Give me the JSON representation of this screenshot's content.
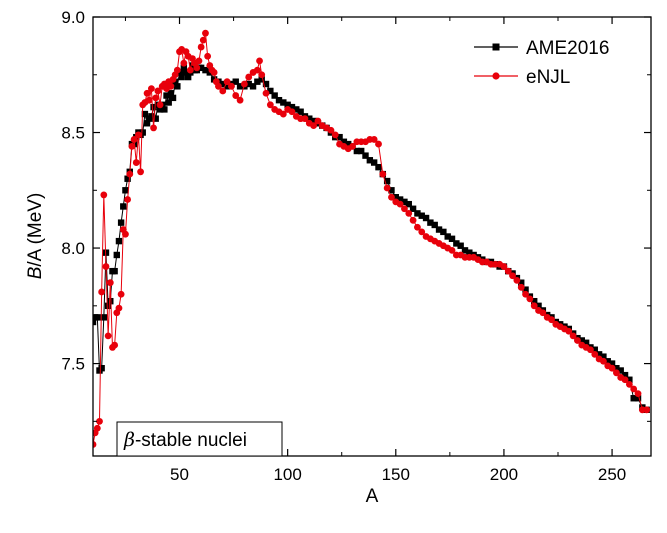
{
  "chart_data": {
    "type": "line",
    "xlabel": "A",
    "ylabel_italic": "B",
    "ylabel_rest": "/A (MeV)",
    "xlim": [
      10,
      268
    ],
    "ylim": [
      7.1,
      9.0
    ],
    "xticks": [
      50,
      100,
      150,
      200,
      250
    ],
    "yticks": [
      7.5,
      8.0,
      8.5,
      9.0
    ],
    "xtick_labels": [
      "50",
      "100",
      "150",
      "200",
      "250"
    ],
    "ytick_labels": [
      "7.5",
      "8.0",
      "8.5",
      "9.0"
    ],
    "legend_position": "top-right",
    "annotation_symbol": "β",
    "annotation_text": "-stable nuclei",
    "series": [
      {
        "name": "AME2016",
        "color": "#000000",
        "marker": "square",
        "points": [
          [
            10,
            7.68
          ],
          [
            11,
            7.7
          ],
          [
            12,
            7.7
          ],
          [
            13,
            7.47
          ],
          [
            14,
            7.48
          ],
          [
            15,
            7.7
          ],
          [
            16,
            7.98
          ],
          [
            17,
            7.75
          ],
          [
            18,
            7.77
          ],
          [
            19,
            7.9
          ],
          [
            20,
            7.9
          ],
          [
            21,
            7.97
          ],
          [
            22,
            8.03
          ],
          [
            23,
            8.11
          ],
          [
            24,
            8.18
          ],
          [
            25,
            8.25
          ],
          [
            26,
            8.3
          ],
          [
            27,
            8.33
          ],
          [
            28,
            8.45
          ],
          [
            29,
            8.45
          ],
          [
            30,
            8.48
          ],
          [
            31,
            8.5
          ],
          [
            32,
            8.49
          ],
          [
            33,
            8.5
          ],
          [
            34,
            8.58
          ],
          [
            35,
            8.54
          ],
          [
            36,
            8.56
          ],
          [
            37,
            8.57
          ],
          [
            38,
            8.61
          ],
          [
            39,
            8.56
          ],
          [
            40,
            8.62
          ],
          [
            41,
            8.6
          ],
          [
            42,
            8.62
          ],
          [
            43,
            8.6
          ],
          [
            44,
            8.66
          ],
          [
            45,
            8.63
          ],
          [
            46,
            8.67
          ],
          [
            47,
            8.65
          ],
          [
            48,
            8.72
          ],
          [
            49,
            8.7
          ],
          [
            50,
            8.76
          ],
          [
            51,
            8.74
          ],
          [
            52,
            8.78
          ],
          [
            53,
            8.76
          ],
          [
            54,
            8.74
          ],
          [
            55,
            8.76
          ],
          [
            56,
            8.79
          ],
          [
            57,
            8.77
          ],
          [
            58,
            8.77
          ],
          [
            59,
            8.78
          ],
          [
            60,
            8.78
          ],
          [
            62,
            8.77
          ],
          [
            64,
            8.76
          ],
          [
            66,
            8.73
          ],
          [
            68,
            8.72
          ],
          [
            70,
            8.71
          ],
          [
            72,
            8.7
          ],
          [
            74,
            8.71
          ],
          [
            76,
            8.72
          ],
          [
            78,
            8.7
          ],
          [
            80,
            8.7
          ],
          [
            82,
            8.71
          ],
          [
            84,
            8.7
          ],
          [
            86,
            8.72
          ],
          [
            88,
            8.73
          ],
          [
            90,
            8.71
          ],
          [
            92,
            8.68
          ],
          [
            94,
            8.66
          ],
          [
            96,
            8.64
          ],
          [
            98,
            8.63
          ],
          [
            100,
            8.62
          ],
          [
            102,
            8.61
          ],
          [
            104,
            8.6
          ],
          [
            106,
            8.59
          ],
          [
            108,
            8.57
          ],
          [
            110,
            8.56
          ],
          [
            112,
            8.55
          ],
          [
            114,
            8.54
          ],
          [
            116,
            8.53
          ],
          [
            118,
            8.52
          ],
          [
            120,
            8.5
          ],
          [
            122,
            8.48
          ],
          [
            124,
            8.48
          ],
          [
            126,
            8.46
          ],
          [
            128,
            8.45
          ],
          [
            130,
            8.44
          ],
          [
            132,
            8.42
          ],
          [
            134,
            8.42
          ],
          [
            136,
            8.4
          ],
          [
            138,
            8.38
          ],
          [
            140,
            8.37
          ],
          [
            142,
            8.35
          ],
          [
            144,
            8.32
          ],
          [
            146,
            8.29
          ],
          [
            148,
            8.25
          ],
          [
            150,
            8.22
          ],
          [
            152,
            8.21
          ],
          [
            154,
            8.2
          ],
          [
            156,
            8.19
          ],
          [
            158,
            8.17
          ],
          [
            160,
            8.15
          ],
          [
            162,
            8.14
          ],
          [
            164,
            8.13
          ],
          [
            166,
            8.11
          ],
          [
            168,
            8.1
          ],
          [
            170,
            8.08
          ],
          [
            172,
            8.07
          ],
          [
            174,
            8.05
          ],
          [
            176,
            8.04
          ],
          [
            178,
            8.02
          ],
          [
            180,
            8.01
          ],
          [
            182,
            7.99
          ],
          [
            184,
            7.98
          ],
          [
            186,
            7.97
          ],
          [
            188,
            7.96
          ],
          [
            190,
            7.95
          ],
          [
            192,
            7.94
          ],
          [
            194,
            7.94
          ],
          [
            196,
            7.93
          ],
          [
            198,
            7.92
          ],
          [
            200,
            7.92
          ],
          [
            202,
            7.9
          ],
          [
            204,
            7.89
          ],
          [
            206,
            7.87
          ],
          [
            208,
            7.85
          ],
          [
            210,
            7.82
          ],
          [
            212,
            7.79
          ],
          [
            214,
            7.77
          ],
          [
            216,
            7.75
          ],
          [
            218,
            7.73
          ],
          [
            220,
            7.71
          ],
          [
            222,
            7.7
          ],
          [
            224,
            7.68
          ],
          [
            226,
            7.67
          ],
          [
            228,
            7.66
          ],
          [
            230,
            7.65
          ],
          [
            232,
            7.63
          ],
          [
            234,
            7.61
          ],
          [
            236,
            7.6
          ],
          [
            238,
            7.59
          ],
          [
            240,
            7.57
          ],
          [
            242,
            7.56
          ],
          [
            244,
            7.54
          ],
          [
            246,
            7.53
          ],
          [
            248,
            7.51
          ],
          [
            250,
            7.5
          ],
          [
            252,
            7.48
          ],
          [
            254,
            7.47
          ],
          [
            256,
            7.45
          ],
          [
            258,
            7.43
          ],
          [
            260,
            7.35
          ],
          [
            262,
            7.35
          ],
          [
            264,
            7.31
          ],
          [
            266,
            7.3
          ]
        ]
      },
      {
        "name": "eNJL",
        "color": "#e8000b",
        "marker": "circle",
        "points": [
          [
            10,
            7.15
          ],
          [
            11,
            7.2
          ],
          [
            12,
            7.22
          ],
          [
            13,
            7.25
          ],
          [
            14,
            7.81
          ],
          [
            15,
            8.23
          ],
          [
            16,
            7.92
          ],
          [
            17,
            7.62
          ],
          [
            18,
            7.85
          ],
          [
            19,
            7.57
          ],
          [
            20,
            7.58
          ],
          [
            21,
            7.72
          ],
          [
            22,
            7.74
          ],
          [
            23,
            7.8
          ],
          [
            24,
            8.08
          ],
          [
            25,
            8.06
          ],
          [
            26,
            8.21
          ],
          [
            27,
            8.32
          ],
          [
            28,
            8.44
          ],
          [
            29,
            8.47
          ],
          [
            30,
            8.37
          ],
          [
            31,
            8.49
          ],
          [
            32,
            8.33
          ],
          [
            33,
            8.62
          ],
          [
            34,
            8.63
          ],
          [
            35,
            8.67
          ],
          [
            36,
            8.64
          ],
          [
            37,
            8.69
          ],
          [
            38,
            8.52
          ],
          [
            39,
            8.65
          ],
          [
            40,
            8.68
          ],
          [
            41,
            8.62
          ],
          [
            42,
            8.7
          ],
          [
            43,
            8.71
          ],
          [
            44,
            8.69
          ],
          [
            45,
            8.72
          ],
          [
            46,
            8.7
          ],
          [
            47,
            8.73
          ],
          [
            48,
            8.75
          ],
          [
            49,
            8.77
          ],
          [
            50,
            8.85
          ],
          [
            51,
            8.86
          ],
          [
            52,
            8.8
          ],
          [
            53,
            8.85
          ],
          [
            54,
            8.83
          ],
          [
            55,
            8.77
          ],
          [
            56,
            8.82
          ],
          [
            57,
            8.8
          ],
          [
            58,
            8.78
          ],
          [
            59,
            8.81
          ],
          [
            60,
            8.87
          ],
          [
            61,
            8.9
          ],
          [
            62,
            8.93
          ],
          [
            63,
            8.83
          ],
          [
            64,
            8.79
          ],
          [
            65,
            8.77
          ],
          [
            66,
            8.76
          ],
          [
            67,
            8.72
          ],
          [
            68,
            8.7
          ],
          [
            70,
            8.68
          ],
          [
            72,
            8.72
          ],
          [
            74,
            8.7
          ],
          [
            76,
            8.66
          ],
          [
            78,
            8.64
          ],
          [
            80,
            8.71
          ],
          [
            82,
            8.74
          ],
          [
            84,
            8.76
          ],
          [
            86,
            8.77
          ],
          [
            87,
            8.81
          ],
          [
            88,
            8.75
          ],
          [
            90,
            8.67
          ],
          [
            92,
            8.62
          ],
          [
            94,
            8.6
          ],
          [
            96,
            8.59
          ],
          [
            98,
            8.58
          ],
          [
            100,
            8.6
          ],
          [
            102,
            8.59
          ],
          [
            104,
            8.57
          ],
          [
            106,
            8.56
          ],
          [
            108,
            8.56
          ],
          [
            110,
            8.54
          ],
          [
            112,
            8.53
          ],
          [
            114,
            8.55
          ],
          [
            116,
            8.53
          ],
          [
            118,
            8.52
          ],
          [
            120,
            8.51
          ],
          [
            122,
            8.49
          ],
          [
            124,
            8.45
          ],
          [
            126,
            8.44
          ],
          [
            128,
            8.43
          ],
          [
            130,
            8.44
          ],
          [
            132,
            8.46
          ],
          [
            134,
            8.46
          ],
          [
            136,
            8.46
          ],
          [
            138,
            8.47
          ],
          [
            140,
            8.47
          ],
          [
            142,
            8.45
          ],
          [
            144,
            8.32
          ],
          [
            146,
            8.26
          ],
          [
            148,
            8.22
          ],
          [
            150,
            8.2
          ],
          [
            152,
            8.19
          ],
          [
            154,
            8.17
          ],
          [
            156,
            8.15
          ],
          [
            158,
            8.12
          ],
          [
            160,
            8.09
          ],
          [
            162,
            8.07
          ],
          [
            164,
            8.05
          ],
          [
            166,
            8.04
          ],
          [
            168,
            8.03
          ],
          [
            170,
            8.02
          ],
          [
            172,
            8.01
          ],
          [
            174,
            8.0
          ],
          [
            176,
            7.99
          ],
          [
            178,
            7.97
          ],
          [
            180,
            7.97
          ],
          [
            182,
            7.96
          ],
          [
            184,
            7.96
          ],
          [
            186,
            7.96
          ],
          [
            188,
            7.95
          ],
          [
            190,
            7.94
          ],
          [
            192,
            7.94
          ],
          [
            194,
            7.93
          ],
          [
            196,
            7.93
          ],
          [
            198,
            7.93
          ],
          [
            200,
            7.92
          ],
          [
            202,
            7.9
          ],
          [
            204,
            7.88
          ],
          [
            206,
            7.86
          ],
          [
            208,
            7.83
          ],
          [
            210,
            7.8
          ],
          [
            212,
            7.78
          ],
          [
            214,
            7.75
          ],
          [
            216,
            7.73
          ],
          [
            218,
            7.72
          ],
          [
            220,
            7.7
          ],
          [
            222,
            7.69
          ],
          [
            224,
            7.67
          ],
          [
            226,
            7.66
          ],
          [
            228,
            7.65
          ],
          [
            230,
            7.64
          ],
          [
            232,
            7.62
          ],
          [
            234,
            7.6
          ],
          [
            236,
            7.58
          ],
          [
            238,
            7.57
          ],
          [
            240,
            7.56
          ],
          [
            242,
            7.54
          ],
          [
            244,
            7.52
          ],
          [
            246,
            7.51
          ],
          [
            248,
            7.49
          ],
          [
            250,
            7.48
          ],
          [
            252,
            7.46
          ],
          [
            254,
            7.44
          ],
          [
            256,
            7.43
          ],
          [
            258,
            7.41
          ],
          [
            260,
            7.39
          ],
          [
            262,
            7.37
          ],
          [
            264,
            7.3
          ],
          [
            266,
            7.3
          ]
        ]
      }
    ]
  }
}
